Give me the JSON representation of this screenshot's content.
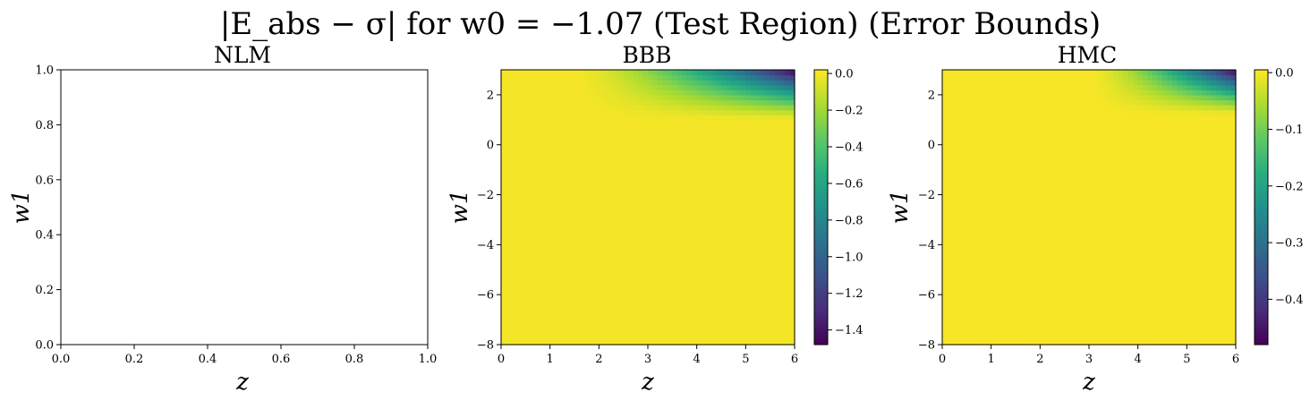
{
  "suptitle": "|E_abs − σ| for w0 = −1.07 (Test Region) (Error Bounds)",
  "colors": {
    "viridis_low": "#440154",
    "viridis_mid": "#21918c",
    "viridis_high": "#fde725"
  },
  "chart_data": [
    {
      "type": "heatmap",
      "title": "NLM",
      "xlabel": "z",
      "ylabel": "w1",
      "xlim": [
        0,
        1
      ],
      "ylim": [
        0,
        1
      ],
      "x_ticks": [
        "0.0",
        "0.2",
        "0.4",
        "0.6",
        "0.8",
        "1.0"
      ],
      "y_ticks": [
        "0.0",
        "0.2",
        "0.4",
        "0.6",
        "0.8",
        "1.0"
      ],
      "empty": true
    },
    {
      "type": "heatmap",
      "title": "BBB",
      "xlabel": "z",
      "ylabel": "w1",
      "xlim": [
        0,
        6
      ],
      "ylim": [
        -8,
        3
      ],
      "x_ticks": [
        "0",
        "1",
        "2",
        "3",
        "4",
        "5",
        "6"
      ],
      "y_ticks": [
        "−8",
        "−6",
        "−4",
        "−2",
        "0",
        "2"
      ],
      "colorbar": {
        "min": -1.48,
        "max": 0.02,
        "ticks": [
          "0.0",
          "−0.2",
          "−0.4",
          "−0.6",
          "−0.8",
          "−1.0",
          "−1.2",
          "−1.4"
        ]
      },
      "field": {
        "z_start": 1.5,
        "w_start": 1.0,
        "min_value": -1.48,
        "decay_z": 4.5,
        "decay_w": 2.0
      }
    },
    {
      "type": "heatmap",
      "title": "HMC",
      "xlabel": "z",
      "ylabel": "w1",
      "xlim": [
        0,
        6
      ],
      "ylim": [
        -8,
        3
      ],
      "x_ticks": [
        "0",
        "1",
        "2",
        "3",
        "4",
        "5",
        "6"
      ],
      "y_ticks": [
        "−8",
        "−6",
        "−4",
        "−2",
        "0",
        "2"
      ],
      "colorbar": {
        "min": -0.48,
        "max": 0.005,
        "ticks": [
          "0.0",
          "−0.1",
          "−0.2",
          "−0.3",
          "−0.4"
        ]
      },
      "field": {
        "z_start": 3.0,
        "w_start": 1.2,
        "min_value": -0.48,
        "decay_z": 3.0,
        "decay_w": 1.8
      }
    }
  ]
}
